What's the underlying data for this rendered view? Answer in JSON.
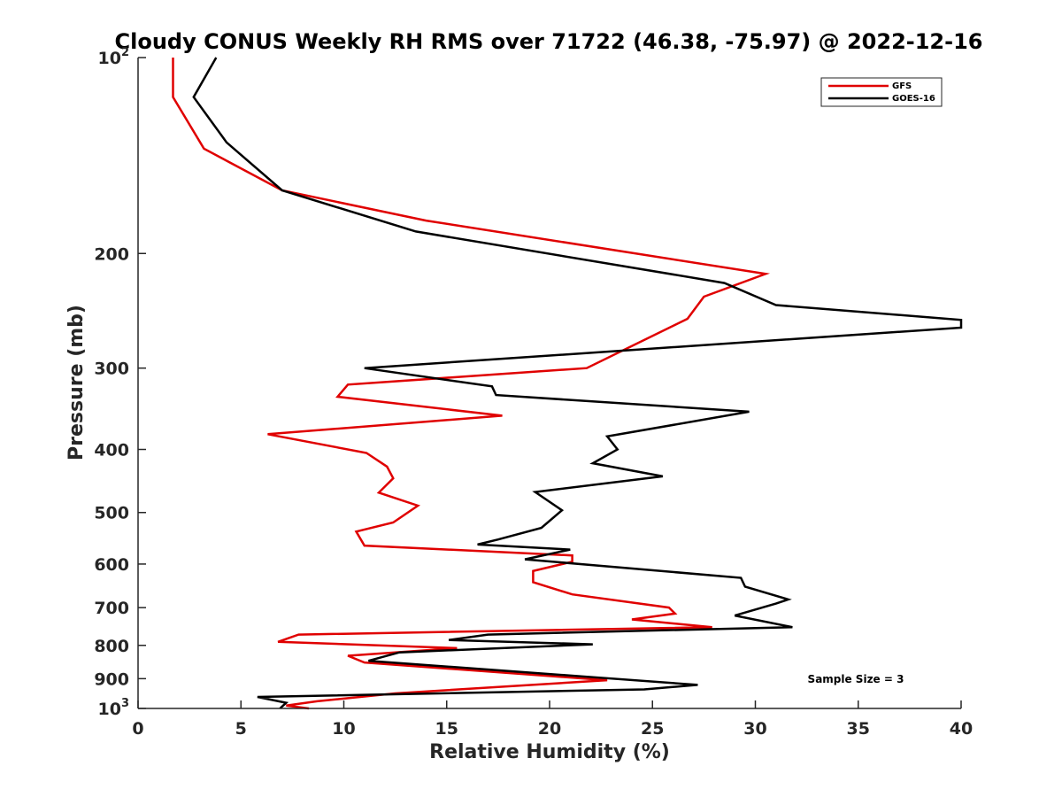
{
  "chart_data": {
    "type": "line",
    "title": "Cloudy CONUS Weekly RH RMS over 71722 (46.38, -75.97) @ 2022-12-16",
    "xlabel": "Relative Humidity (%)",
    "ylabel": "Pressure (mb)",
    "xlim": [
      0,
      40
    ],
    "ylim": [
      100,
      1000
    ],
    "yscale": "log",
    "y_reversed": true,
    "grid": false,
    "legend_position": "top-right",
    "x_ticks": [
      "0",
      "5",
      "10",
      "15",
      "20",
      "25",
      "30",
      "35",
      "40"
    ],
    "x_tick_values": [
      0,
      5,
      10,
      15,
      20,
      25,
      30,
      35,
      40
    ],
    "y_ticks": [
      {
        "value": 100,
        "base": "10",
        "exp": "2"
      },
      {
        "value": 200,
        "label": "200"
      },
      {
        "value": 300,
        "label": "300"
      },
      {
        "value": 400,
        "label": "400"
      },
      {
        "value": 500,
        "label": "500"
      },
      {
        "value": 600,
        "label": "600"
      },
      {
        "value": 700,
        "label": "700"
      },
      {
        "value": 800,
        "label": "800"
      },
      {
        "value": 900,
        "label": "900"
      },
      {
        "value": 1000,
        "base": "10",
        "exp": "3"
      }
    ],
    "series": [
      {
        "name": "GFS",
        "color": "#e00000",
        "x": [
          1.7,
          1.7,
          3.2,
          7.0,
          14.0,
          30.5,
          27.5,
          26.7,
          21.8,
          10.2,
          9.7,
          17.7,
          6.3,
          11.1,
          12.1,
          12.4,
          11.7,
          13.6,
          12.4,
          10.6,
          11.0,
          21.1,
          21.1,
          19.2,
          19.2,
          21.1,
          25.8,
          26.1,
          24.0,
          27.9,
          7.8,
          6.8,
          15.5,
          10.2,
          11.0,
          22.8,
          12.5,
          8.7,
          7.2,
          8.3
        ],
        "y": [
          100,
          115,
          138,
          160,
          178,
          215,
          233,
          252,
          300,
          318,
          332,
          355,
          379,
          405,
          425,
          443,
          466,
          488,
          518,
          535,
          562,
          582,
          595,
          615,
          640,
          668,
          700,
          715,
          730,
          750,
          770,
          790,
          808,
          830,
          850,
          905,
          948,
          975,
          990,
          1000
        ]
      },
      {
        "name": "GOES-16",
        "color": "#000000",
        "x": [
          3.8,
          2.7,
          4.3,
          7.0,
          13.5,
          28.5,
          31.0,
          40.0,
          40.0,
          11.0,
          17.2,
          17.4,
          29.7,
          22.8,
          23.3,
          22.1,
          25.5,
          19.3,
          20.6,
          19.6,
          17.5,
          16.5,
          21.0,
          18.8,
          29.3,
          29.5,
          31.6,
          31.0,
          29.0,
          31.8,
          17.0,
          15.1,
          22.1,
          12.7,
          11.2,
          27.2,
          24.6,
          5.8,
          7.2,
          6.9
        ],
        "y": [
          100,
          115,
          135,
          160,
          185,
          222,
          240,
          253,
          260,
          300,
          320,
          330,
          350,
          382,
          400,
          420,
          440,
          465,
          496,
          528,
          550,
          560,
          570,
          590,
          630,
          650,
          680,
          690,
          720,
          750,
          770,
          785,
          797,
          820,
          845,
          920,
          935,
          960,
          980,
          1000
        ]
      }
    ],
    "annotation": "Sample Size = 3"
  }
}
